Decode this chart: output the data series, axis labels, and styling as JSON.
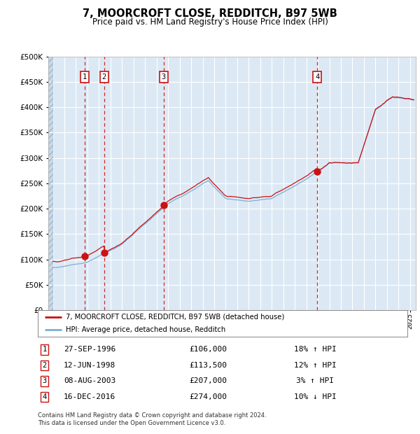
{
  "title": "7, MOORCROFT CLOSE, REDDITCH, B97 5WB",
  "subtitle": "Price paid vs. HM Land Registry's House Price Index (HPI)",
  "ylim": [
    0,
    500000
  ],
  "ytick_step": 50000,
  "fig_bg": "#ffffff",
  "plot_bg": "#dce9f5",
  "grid_color": "#ffffff",
  "red_color": "#cc1111",
  "blue_color": "#7ab0d4",
  "vline_color": "#cc1111",
  "transactions": [
    {
      "num": 1,
      "date_str": "27-SEP-1996",
      "year": 1996.74,
      "price": 106000,
      "pct": "18%",
      "dir": "↑"
    },
    {
      "num": 2,
      "date_str": "12-JUN-1998",
      "year": 1998.44,
      "price": 113500,
      "pct": "12%",
      "dir": "↑"
    },
    {
      "num": 3,
      "date_str": "08-AUG-2003",
      "year": 2003.6,
      "price": 207000,
      "pct": "3%",
      "dir": "↑"
    },
    {
      "num": 4,
      "date_str": "16-DEC-2016",
      "year": 2016.96,
      "price": 274000,
      "pct": "10%",
      "dir": "↓"
    }
  ],
  "legend1": "7, MOORCROFT CLOSE, REDDITCH, B97 5WB (detached house)",
  "legend2": "HPI: Average price, detached house, Redditch",
  "footer1": "Contains HM Land Registry data © Crown copyright and database right 2024.",
  "footer2": "This data is licensed under the Open Government Licence v3.0."
}
